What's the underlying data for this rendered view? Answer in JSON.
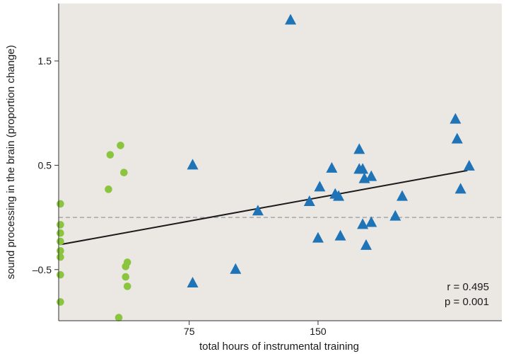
{
  "chart_data": {
    "type": "scatter",
    "xlabel": "total hours of instrumental training",
    "ylabel": "sound processing in the brain (proportion change)",
    "xlim": [
      -1,
      257
    ],
    "ylim": [
      -0.99,
      2.05
    ],
    "xticks": [
      {
        "value": 75,
        "label": "75"
      },
      {
        "value": 150,
        "label": "150"
      }
    ],
    "yticks": [
      {
        "value": 1.5,
        "label": "1.5"
      },
      {
        "value": 0.5,
        "label": "0.5"
      },
      {
        "value": -0.5,
        "label": "–0.5"
      }
    ],
    "grid": false,
    "background": "#ebe8e3",
    "series": [
      {
        "marker": "circle",
        "color": "#8bc53f",
        "points": [
          {
            "x": 0,
            "y": 0.13
          },
          {
            "x": 0,
            "y": -0.07
          },
          {
            "x": 0,
            "y": -0.15
          },
          {
            "x": 0,
            "y": -0.23
          },
          {
            "x": 0,
            "y": -0.32
          },
          {
            "x": 0,
            "y": -0.38
          },
          {
            "x": 0,
            "y": -0.55
          },
          {
            "x": 0,
            "y": -0.81
          },
          {
            "x": 28,
            "y": 0.27
          },
          {
            "x": 29,
            "y": 0.6
          },
          {
            "x": 35,
            "y": 0.69
          },
          {
            "x": 37,
            "y": 0.43
          },
          {
            "x": 38,
            "y": -0.47
          },
          {
            "x": 38,
            "y": -0.57
          },
          {
            "x": 39,
            "y": -0.43
          },
          {
            "x": 39,
            "y": -0.66
          },
          {
            "x": 34,
            "y": -0.96
          }
        ]
      },
      {
        "marker": "triangle",
        "color": "#1f73b7",
        "points": [
          {
            "x": 77,
            "y": 0.5
          },
          {
            "x": 77,
            "y": -0.63
          },
          {
            "x": 102,
            "y": -0.5
          },
          {
            "x": 115,
            "y": 0.06
          },
          {
            "x": 134,
            "y": 1.89
          },
          {
            "x": 145,
            "y": 0.15
          },
          {
            "x": 150,
            "y": -0.2
          },
          {
            "x": 151,
            "y": 0.29
          },
          {
            "x": 158,
            "y": 0.47
          },
          {
            "x": 160,
            "y": 0.22
          },
          {
            "x": 162,
            "y": 0.2
          },
          {
            "x": 163,
            "y": -0.18
          },
          {
            "x": 174,
            "y": 0.65
          },
          {
            "x": 174,
            "y": 0.46
          },
          {
            "x": 176,
            "y": 0.46
          },
          {
            "x": 176,
            "y": -0.07
          },
          {
            "x": 177,
            "y": 0.37
          },
          {
            "x": 178,
            "y": -0.27
          },
          {
            "x": 181,
            "y": 0.39
          },
          {
            "x": 181,
            "y": -0.05
          },
          {
            "x": 195,
            "y": 0.01
          },
          {
            "x": 199,
            "y": 0.2
          },
          {
            "x": 230,
            "y": 0.94
          },
          {
            "x": 231,
            "y": 0.75
          },
          {
            "x": 233,
            "y": 0.27
          },
          {
            "x": 238,
            "y": 0.49
          }
        ]
      }
    ],
    "trendline": {
      "x": [
        0,
        237
      ],
      "y": [
        -0.26,
        0.45
      ],
      "color": "#1a1a1a"
    },
    "reference_line": {
      "y": 0.0,
      "style": "dashed",
      "color": "#a6a6a6"
    },
    "annotations": [
      "r = 0.495",
      "p = 0.001"
    ]
  }
}
